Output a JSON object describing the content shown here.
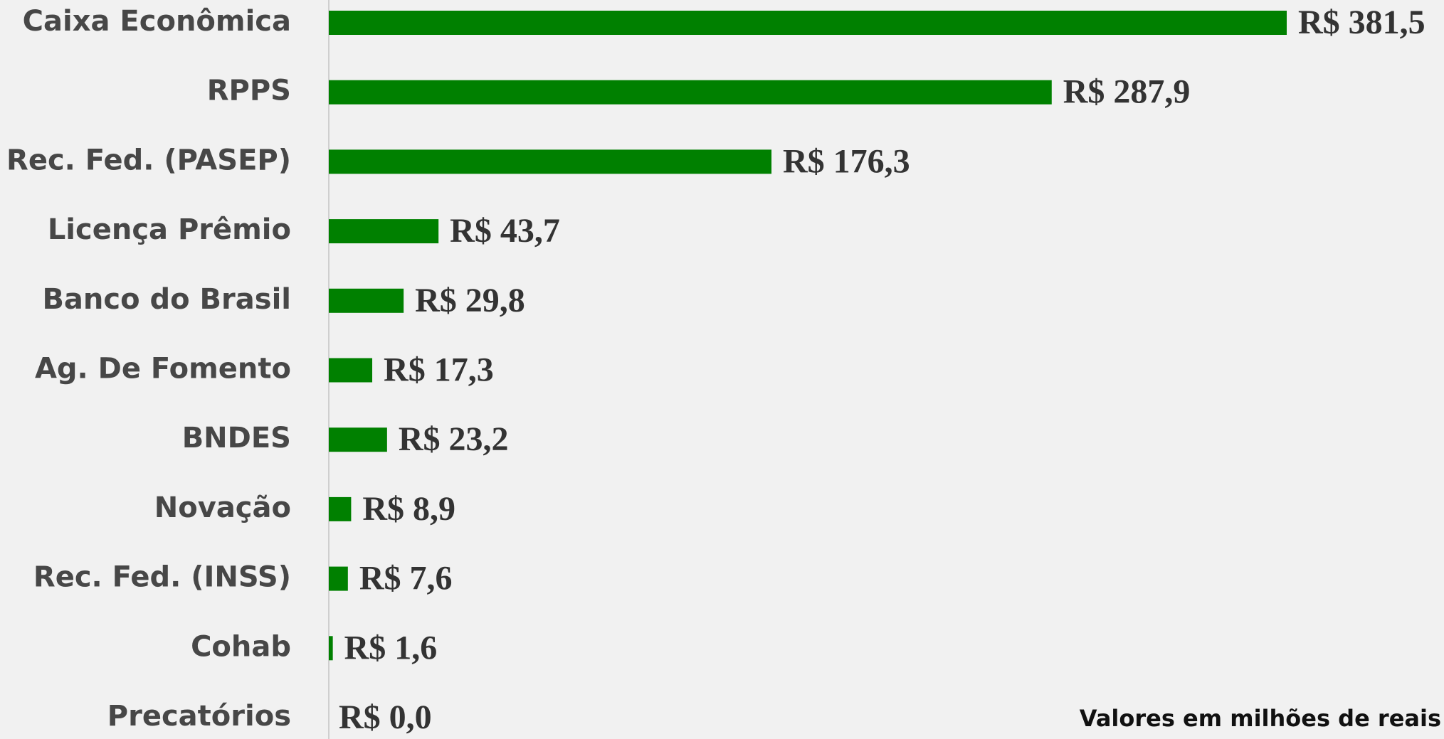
{
  "chart_data": {
    "type": "bar",
    "orientation": "horizontal",
    "categories": [
      "Caixa Econômica",
      "RPPS",
      "Rec. Fed. (PASEP)",
      "Licença Prêmio",
      "Banco do Brasil",
      "Ag. De Fomento",
      "BNDES",
      "Novação",
      "Rec. Fed. (INSS)",
      "Cohab",
      "Precatórios"
    ],
    "values": [
      381.5,
      287.9,
      176.3,
      43.7,
      29.8,
      17.3,
      23.2,
      8.9,
      7.6,
      1.6,
      0
    ],
    "value_labels": [
      "R$ 381,5",
      "R$ 287,9",
      "R$ 176,3",
      "R$ 43,7",
      "R$ 29,8",
      "R$ 17,3",
      "R$ 23,2",
      "R$ 8,9",
      "R$ 7,6",
      "R$ 1,6",
      "R$ 0,0"
    ],
    "color": "#008000",
    "annotation": "Valores em milhões de reais"
  }
}
